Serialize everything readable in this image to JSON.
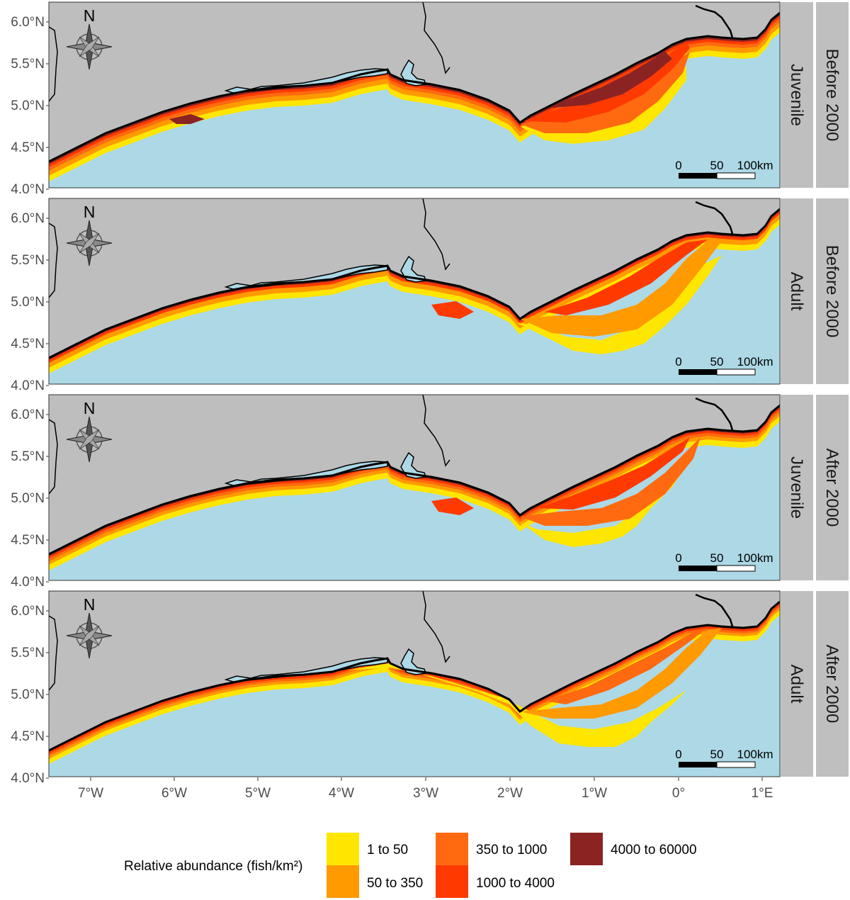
{
  "map": {
    "y_ticks": [
      "6.0°N",
      "5.5°N",
      "5.0°N",
      "4.5°N",
      "4.0°N"
    ],
    "x_ticks": [
      "7°W",
      "6°W",
      "5°W",
      "4°W",
      "3°W",
      "2°W",
      "1°W",
      "0°",
      "1°E"
    ],
    "north_label": "N",
    "scale_bar": {
      "labels": [
        "0",
        "50",
        "100km"
      ]
    },
    "colors": {
      "land": "#bebebe",
      "sea": "#add8e6",
      "lagoon": "#add8e6",
      "coastline": "#000000",
      "strip": "#bfbfbf"
    },
    "panels": [
      {
        "stage": "Juvenile",
        "period": "Before 2000",
        "scheme": "juv_before"
      },
      {
        "stage": "Adult",
        "period": "Before 2000",
        "scheme": "adult_before"
      },
      {
        "stage": "Juvenile",
        "period": "After 2000",
        "scheme": "juv_after"
      },
      {
        "stage": "Adult",
        "period": "After 2000",
        "scheme": "adult_after"
      }
    ]
  },
  "legend": {
    "title": "Relative abundance (fish/km²)",
    "classes": [
      {
        "label": "1 to 50",
        "color": "#ffe600"
      },
      {
        "label": "50 to 350",
        "color": "#ff9a00"
      },
      {
        "label": "350 to 1000",
        "color": "#ff6a10"
      },
      {
        "label": "1000 to 4000",
        "color": "#ff3a00"
      },
      {
        "label": "4000 to 60000",
        "color": "#8b2323"
      }
    ]
  }
}
